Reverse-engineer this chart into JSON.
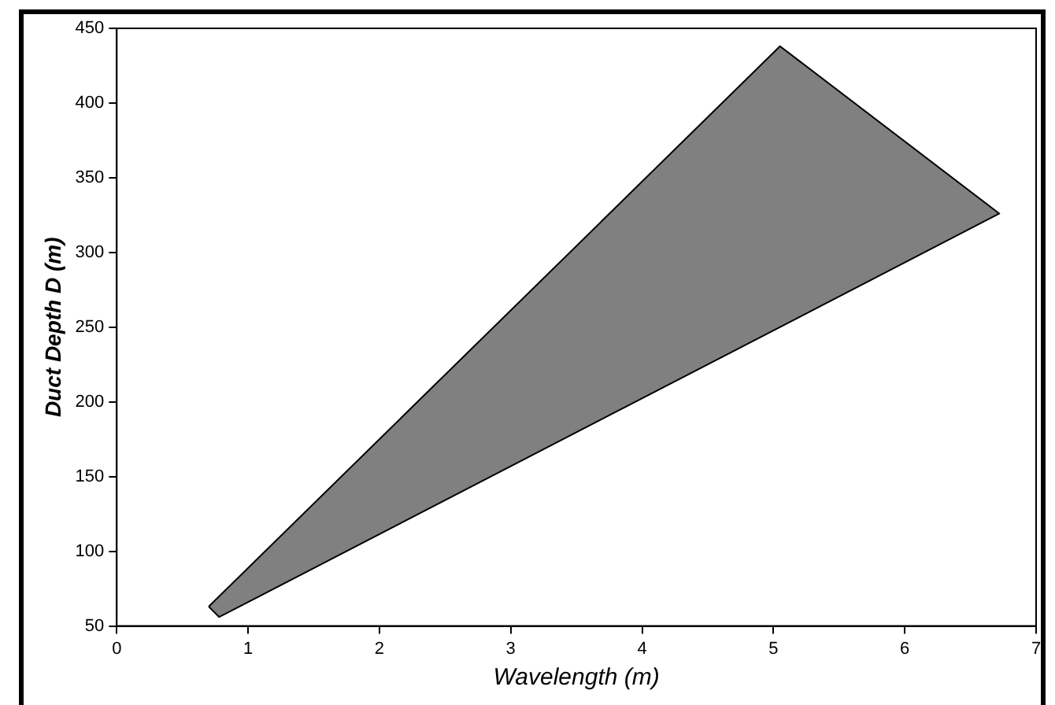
{
  "chart_data": {
    "type": "area",
    "xlabel": "Wavelength (m)",
    "ylabel": "Duct Depth D (m)",
    "series": [
      {
        "color": "#808080",
        "x": [
          0.7,
          5.05,
          6.72,
          0.78,
          0.7
        ],
        "values": [
          63,
          438,
          326,
          56,
          63
        ]
      }
    ],
    "xlim": [
      0,
      7
    ],
    "xticks": [
      0,
      1,
      2,
      3,
      4,
      5,
      6,
      7
    ],
    "ylim": [
      50,
      450
    ],
    "yticks": [
      50,
      100,
      150,
      200,
      250,
      300,
      350,
      400,
      450
    ],
    "grid": false,
    "legend": false,
    "marker": "none",
    "line_style": "solid"
  }
}
